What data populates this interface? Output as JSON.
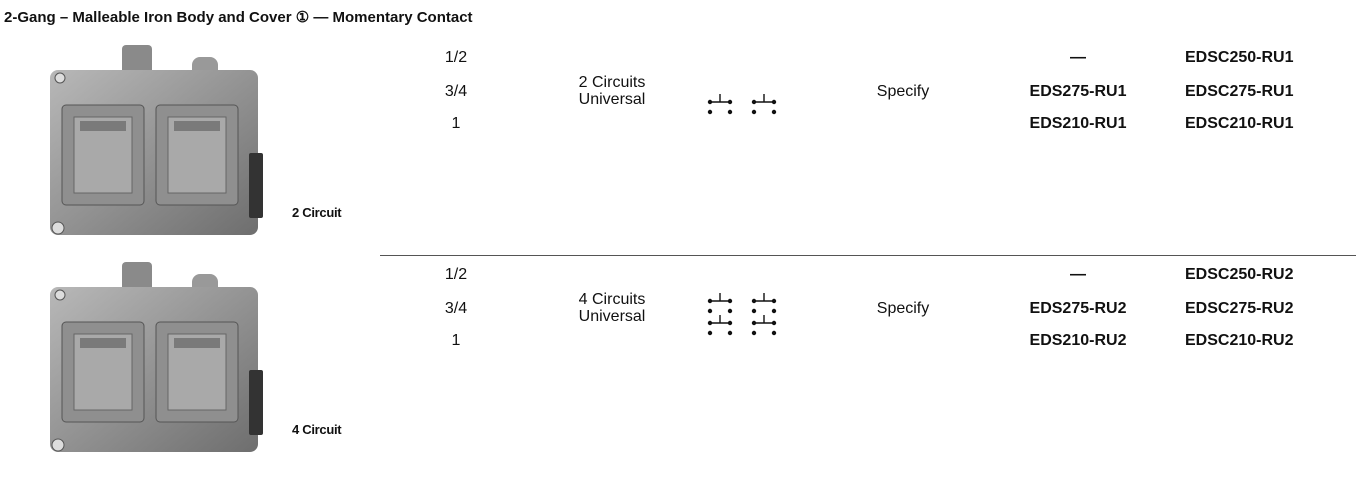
{
  "header": {
    "title": "2-Gang – Malleable Iron Body and Cover ① — Momentary Contact"
  },
  "sections": [
    {
      "caption": "2 Circuit",
      "sizes": [
        "1/2",
        "3/4",
        "1"
      ],
      "circuits": [
        "2 Circuits",
        "Universal"
      ],
      "operator": "Specify",
      "catalog_a": [
        "—",
        "EDS275-RU1",
        "EDS210-RU1"
      ],
      "catalog_b": [
        "EDSC250-RU1",
        "EDSC275-RU1",
        "EDSC210-RU1"
      ]
    },
    {
      "caption": "4 Circuit",
      "sizes": [
        "1/2",
        "3/4",
        "1"
      ],
      "circuits": [
        "4 Circuits",
        "Universal"
      ],
      "operator": "Specify",
      "catalog_a": [
        "—",
        "EDS275-RU2",
        "EDS210-RU2"
      ],
      "catalog_b": [
        "EDSC250-RU2",
        "EDSC275-RU2",
        "EDSC210-RU2"
      ]
    }
  ]
}
